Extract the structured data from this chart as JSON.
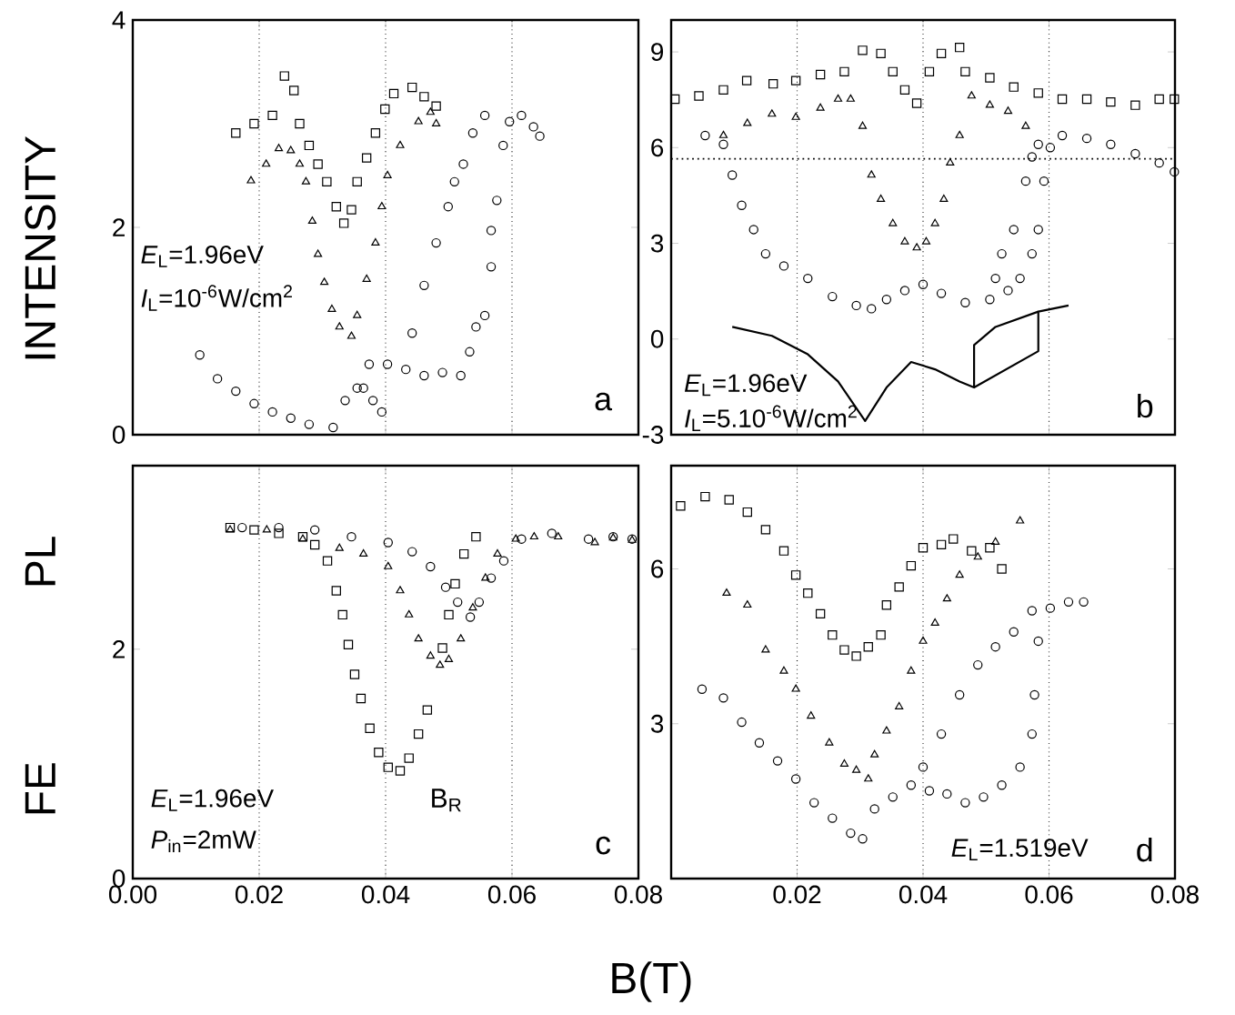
{
  "chart_data": [
    {
      "type": "scatter",
      "ylabel": "FE PL INTENSITY",
      "xlim": [
        0,
        0.08
      ],
      "ylim": [
        0,
        4
      ],
      "xticks": [
        0,
        0.02,
        0.04,
        0.06,
        0.08
      ],
      "yticks": [
        0,
        2,
        4
      ],
      "tick_labels": "y",
      "grid": "x",
      "annotations": [
        "*E*$_{L}$=1.96eV",
        "*I*$_{L}$=10$^{-6}$W/cm$^{2}$",
        "a"
      ],
      "series": [
        {
          "marker": "square",
          "color": "#000000",
          "x": [
            0.0163,
            0.0192,
            0.0221,
            0.024,
            0.0255,
            0.0264,
            0.0279,
            0.0293,
            0.0307,
            0.0322,
            0.0334,
            0.0346,
            0.0355,
            0.037,
            0.0384,
            0.0399,
            0.0413,
            0.0442,
            0.0461,
            0.048
          ],
          "values": [
            2.91,
            3.0,
            3.08,
            3.46,
            3.32,
            3.0,
            2.79,
            2.61,
            2.44,
            2.2,
            2.04,
            2.17,
            2.44,
            2.67,
            2.91,
            3.14,
            3.29,
            3.35,
            3.26,
            3.17
          ]
        },
        {
          "marker": "triangle",
          "color": "#000000",
          "x": [
            0.0187,
            0.0211,
            0.0231,
            0.025,
            0.0264,
            0.0274,
            0.0284,
            0.0293,
            0.0303,
            0.0315,
            0.0327,
            0.0346,
            0.0355,
            0.037,
            0.0384,
            0.0394,
            0.0403,
            0.0423,
            0.0452,
            0.0471,
            0.048
          ],
          "values": [
            2.45,
            2.61,
            2.76,
            2.74,
            2.61,
            2.44,
            2.06,
            1.74,
            1.47,
            1.21,
            1.04,
            0.95,
            1.15,
            1.5,
            1.85,
            2.2,
            2.5,
            2.79,
            3.02,
            3.11,
            3.0
          ]
        },
        {
          "marker": "circle",
          "color": "#000000",
          "x": [
            0.0106,
            0.0134,
            0.0163,
            0.0192,
            0.0221,
            0.025,
            0.0279,
            0.0317,
            0.0336,
            0.0355,
            0.0374,
            0.0403,
            0.0432,
            0.0461,
            0.049,
            0.0519,
            0.0533,
            0.0543,
            0.0557,
            0.0567,
            0.0567,
            0.0576,
            0.0586,
            0.0596,
            0.0615,
            0.0634,
            0.0644,
            0.0365,
            0.038,
            0.0394,
            0.0442,
            0.0461,
            0.048,
            0.0499,
            0.0509,
            0.0523,
            0.0538,
            0.0557
          ],
          "values": [
            0.77,
            0.54,
            0.42,
            0.3,
            0.22,
            0.16,
            0.1,
            0.07,
            0.33,
            0.45,
            0.68,
            0.68,
            0.63,
            0.57,
            0.6,
            0.57,
            0.8,
            1.04,
            1.15,
            1.62,
            1.97,
            2.26,
            2.79,
            3.02,
            3.08,
            2.97,
            2.88,
            0.45,
            0.33,
            0.22,
            0.98,
            1.44,
            1.85,
            2.2,
            2.44,
            2.61,
            2.91,
            3.08
          ]
        }
      ]
    },
    {
      "type": "scatter",
      "xlim": [
        0,
        0.08
      ],
      "ylim": [
        -3,
        10
      ],
      "xticks": [
        0,
        0.02,
        0.04,
        0.06,
        0.08
      ],
      "yticks": [
        -3,
        0,
        3,
        6,
        9
      ],
      "tick_labels": "y",
      "grid": "x",
      "ref_lines": [
        {
          "axis": "y",
          "value": 5.65,
          "line_style": "dotted"
        }
      ],
      "annotations": [
        "*E*$_{L}$=1.96eV",
        "*I*$_{L}$=5.10$^{-6}$W/cm$^{2}$",
        "b"
      ],
      "series": [
        {
          "marker": "square",
          "color": "#000000",
          "x": [
            0.0006,
            0.0044,
            0.0083,
            0.012,
            0.0162,
            0.0198,
            0.0237,
            0.0275,
            0.0304,
            0.0333,
            0.0352,
            0.0371,
            0.039,
            0.041,
            0.0429,
            0.0458,
            0.0467,
            0.0506,
            0.0544,
            0.0583,
            0.0621,
            0.066,
            0.0698,
            0.0737,
            0.0775,
            0.0799
          ],
          "values": [
            7.52,
            7.62,
            7.81,
            8.1,
            8.0,
            8.1,
            8.29,
            8.38,
            9.05,
            8.95,
            8.38,
            7.81,
            7.39,
            8.38,
            8.95,
            9.14,
            8.38,
            8.19,
            7.9,
            7.71,
            7.52,
            7.52,
            7.43,
            7.33,
            7.52,
            7.52
          ]
        },
        {
          "marker": "triangle",
          "color": "#000000",
          "x": [
            0.0083,
            0.0121,
            0.016,
            0.0198,
            0.0237,
            0.0265,
            0.0285,
            0.0304,
            0.0318,
            0.0333,
            0.0352,
            0.0371,
            0.039,
            0.0405,
            0.0419,
            0.0433,
            0.0443,
            0.0458,
            0.0477,
            0.0506,
            0.0535,
            0.0563
          ],
          "values": [
            6.38,
            6.76,
            7.05,
            6.95,
            7.24,
            7.52,
            7.52,
            6.67,
            5.14,
            4.38,
            3.62,
            3.05,
            2.86,
            3.05,
            3.62,
            4.38,
            5.52,
            6.38,
            7.62,
            7.33,
            7.14,
            6.67
          ]
        },
        {
          "marker": "circle",
          "color": "#000000",
          "x": [
            0.0054,
            0.0083,
            0.0097,
            0.0112,
            0.0131,
            0.015,
            0.0179,
            0.0217,
            0.0256,
            0.0294,
            0.0318,
            0.0342,
            0.0371,
            0.04,
            0.0429,
            0.0467,
            0.0506,
            0.0535,
            0.0554,
            0.0573,
            0.0583,
            0.0592,
            0.0602,
            0.0621,
            0.066,
            0.0698,
            0.0737,
            0.0775,
            0.0799,
            0.0515,
            0.0525,
            0.0544,
            0.0563,
            0.0573,
            0.0583
          ],
          "values": [
            6.38,
            6.1,
            5.14,
            4.19,
            3.43,
            2.67,
            2.29,
            1.9,
            1.33,
            1.05,
            0.95,
            1.24,
            1.52,
            1.71,
            1.43,
            1.14,
            1.24,
            1.52,
            1.9,
            2.67,
            3.43,
            4.95,
            6.0,
            6.38,
            6.29,
            6.1,
            5.81,
            5.52,
            5.24,
            1.9,
            2.67,
            3.43,
            4.95,
            5.71,
            6.1
          ]
        },
        {
          "type": "line",
          "marker": "none",
          "color": "#000000",
          "x": [
            0.0097,
            0.016,
            0.0217,
            0.0265,
            0.0308,
            0.0342,
            0.0381,
            0.0419,
            0.0458,
            0.0481,
            0.0583,
            0.0583,
            0.0631
          ],
          "values": [
            0.38,
            0.1,
            -0.48,
            -1.33,
            -2.57,
            -1.52,
            -0.72,
            -0.95,
            -1.33,
            -1.52,
            -0.38,
            0.86,
            1.05
          ]
        },
        {
          "type": "line",
          "marker": "none",
          "color": "#000000",
          "x": [
            0.0481,
            0.0481,
            0.0515,
            0.0583
          ],
          "values": [
            -1.52,
            -0.19,
            0.38,
            0.86
          ]
        }
      ]
    },
    {
      "type": "scatter",
      "xlabel": "B(T)",
      "xlim": [
        0,
        0.08
      ],
      "ylim": [
        0,
        3.6
      ],
      "xticks": [
        {
          "value": 0,
          "label": "0.00"
        },
        0.02,
        0.04,
        0.06,
        0.08
      ],
      "yticks": [
        0,
        2
      ],
      "grid": "x",
      "annotations": [
        "*E*$_{L}$=1.96eV",
        "*P*$_{in}$=2mW",
        "B$_{R}$",
        "c"
      ],
      "series": [
        {
          "marker": "square",
          "color": "#000000",
          "x": [
            0.0154,
            0.0192,
            0.0231,
            0.0269,
            0.0288,
            0.0308,
            0.0322,
            0.0332,
            0.0341,
            0.0351,
            0.0361,
            0.0375,
            0.0389,
            0.0404,
            0.0423,
            0.0437,
            0.0452,
            0.0466,
            0.049,
            0.05,
            0.051,
            0.0524,
            0.0543
          ],
          "values": [
            3.06,
            3.04,
            3.01,
            2.98,
            2.91,
            2.77,
            2.51,
            2.3,
            2.04,
            1.78,
            1.57,
            1.31,
            1.1,
            0.97,
            0.94,
            1.05,
            1.26,
            1.47,
            2.01,
            2.3,
            2.57,
            2.83,
            2.98
          ]
        },
        {
          "marker": "triangle",
          "color": "#000000",
          "x": [
            0.0154,
            0.0212,
            0.0269,
            0.0327,
            0.0365,
            0.0404,
            0.0423,
            0.0437,
            0.0452,
            0.0471,
            0.0486,
            0.05,
            0.0519,
            0.0538,
            0.0558,
            0.0577,
            0.0606,
            0.0635,
            0.0673,
            0.0731,
            0.076,
            0.079
          ],
          "values": [
            3.04,
            3.04,
            2.96,
            2.88,
            2.83,
            2.72,
            2.51,
            2.3,
            2.09,
            1.94,
            1.86,
            1.91,
            2.09,
            2.36,
            2.62,
            2.83,
            2.96,
            2.98,
            2.98,
            2.93,
            2.97,
            2.95
          ]
        },
        {
          "marker": "circle",
          "color": "#000000",
          "x": [
            0.0173,
            0.0231,
            0.0288,
            0.0346,
            0.0404,
            0.0442,
            0.0471,
            0.0495,
            0.0514,
            0.0534,
            0.0548,
            0.0567,
            0.0587,
            0.0615,
            0.0663,
            0.0721,
            0.076,
            0.079
          ],
          "values": [
            3.06,
            3.06,
            3.04,
            2.98,
            2.93,
            2.85,
            2.72,
            2.54,
            2.41,
            2.28,
            2.41,
            2.62,
            2.77,
            2.96,
            3.01,
            2.96,
            2.98,
            2.96
          ]
        }
      ]
    },
    {
      "type": "scatter",
      "xlim": [
        0,
        0.08
      ],
      "ylim": [
        0,
        8
      ],
      "xticks": [
        {
          "value": 0,
          "label": null
        },
        0.02,
        0.04,
        0.06,
        0.08
      ],
      "yticks": [
        3,
        6
      ],
      "grid": "x",
      "annotations": [
        "*E*$_{L}$=1.519eV",
        "d"
      ],
      "series": [
        {
          "marker": "square",
          "color": "#000000",
          "x": [
            0.0015,
            0.0054,
            0.0092,
            0.0121,
            0.015,
            0.0179,
            0.0198,
            0.0217,
            0.0237,
            0.0256,
            0.0275,
            0.0294,
            0.0313,
            0.0333,
            0.0342,
            0.0362,
            0.0381,
            0.04,
            0.0429,
            0.0448,
            0.0477,
            0.0506,
            0.0525
          ],
          "values": [
            7.22,
            7.4,
            7.34,
            7.1,
            6.76,
            6.35,
            5.88,
            5.53,
            5.13,
            4.72,
            4.43,
            4.31,
            4.49,
            4.72,
            5.3,
            5.65,
            6.06,
            6.41,
            6.47,
            6.58,
            6.35,
            6.41,
            6.0
          ]
        },
        {
          "marker": "triangle",
          "color": "#000000",
          "x": [
            0.0088,
            0.0121,
            0.015,
            0.0179,
            0.0198,
            0.0222,
            0.0251,
            0.0275,
            0.0294,
            0.0313,
            0.0323,
            0.0342,
            0.0362,
            0.0381,
            0.04,
            0.0419,
            0.0438,
            0.0458,
            0.0487,
            0.0515,
            0.0554
          ],
          "values": [
            5.53,
            5.3,
            4.43,
            4.02,
            3.67,
            3.15,
            2.63,
            2.22,
            2.1,
            1.93,
            2.4,
            2.86,
            3.33,
            4.02,
            4.6,
            4.95,
            5.42,
            5.88,
            6.23,
            6.52,
            6.93
          ]
        },
        {
          "marker": "circle",
          "color": "#000000",
          "x": [
            0.0049,
            0.0083,
            0.0112,
            0.014,
            0.0169,
            0.0198,
            0.0227,
            0.0256,
            0.0285,
            0.0304,
            0.0323,
            0.0352,
            0.0381,
            0.04,
            0.0429,
            0.0458,
            0.0487,
            0.0515,
            0.0544,
            0.0573,
            0.0602,
            0.0631,
            0.0655,
            0.041,
            0.0438,
            0.0467,
            0.0496,
            0.0525,
            0.0554,
            0.0573,
            0.0577,
            0.0583
          ],
          "values": [
            3.67,
            3.5,
            3.03,
            2.63,
            2.28,
            1.93,
            1.47,
            1.17,
            0.88,
            0.77,
            1.35,
            1.58,
            1.81,
            2.16,
            2.8,
            3.56,
            4.14,
            4.49,
            4.78,
            5.19,
            5.24,
            5.36,
            5.36,
            1.7,
            1.64,
            1.47,
            1.58,
            1.81,
            2.16,
            2.8,
            3.56,
            4.6
          ]
        }
      ]
    }
  ]
}
